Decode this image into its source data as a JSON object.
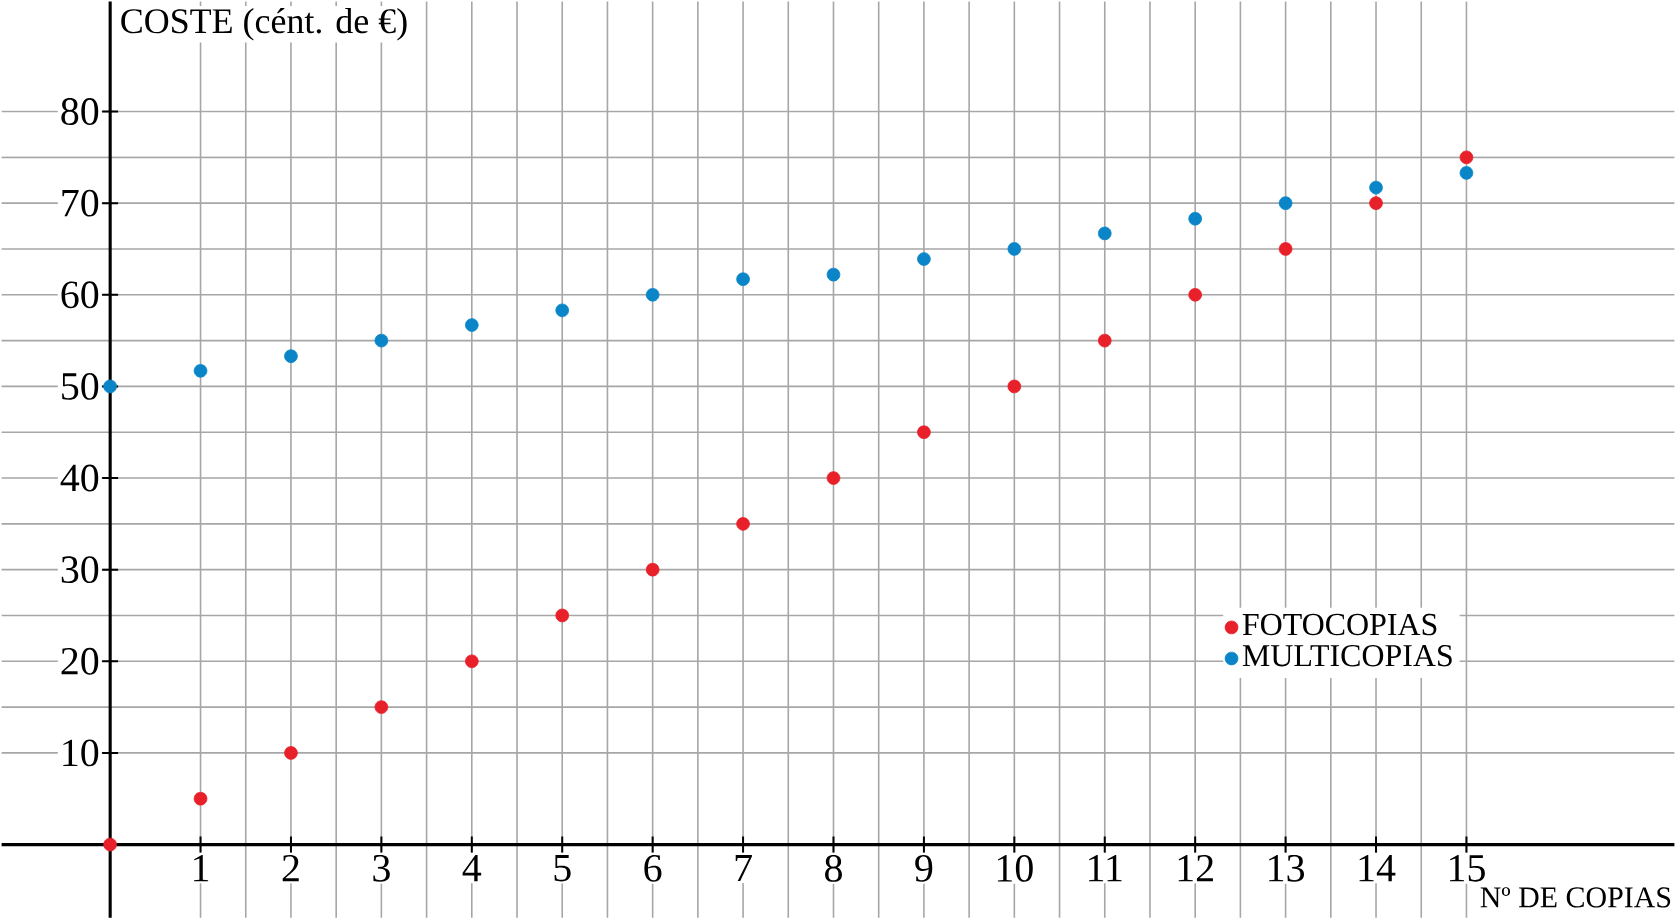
{
  "chart_data": {
    "type": "scatter",
    "xlabel": "Nº DE COPIAS",
    "ylabel": "COSTE (cént. de €)",
    "x": [
      0,
      1,
      2,
      3,
      4,
      5,
      6,
      7,
      8,
      9,
      10,
      11,
      12,
      13,
      14,
      15
    ],
    "series": [
      {
        "name": "FOTOCOPIAS",
        "color": "#e8202a",
        "values": [
          0,
          5,
          10,
          15,
          20,
          25,
          30,
          35,
          40,
          45,
          50,
          55,
          60,
          65,
          70,
          75
        ]
      },
      {
        "name": "MULTICOPIAS",
        "color": "#0a85c8",
        "values": [
          50,
          51.7,
          53.3,
          55,
          56.7,
          58.3,
          60,
          61.7,
          62.2,
          63.9,
          65,
          66.7,
          68.3,
          70,
          71.7,
          73.3
        ]
      }
    ],
    "xlim": [
      -1.2,
      17.3
    ],
    "ylim": [
      -8,
      92
    ],
    "xticks": [
      1,
      2,
      3,
      4,
      5,
      6,
      7,
      8,
      9,
      10,
      11,
      12,
      13,
      14,
      15
    ],
    "yticks": [
      10,
      20,
      30,
      40,
      50,
      60,
      70,
      80
    ],
    "grid": true,
    "legend": "right"
  }
}
